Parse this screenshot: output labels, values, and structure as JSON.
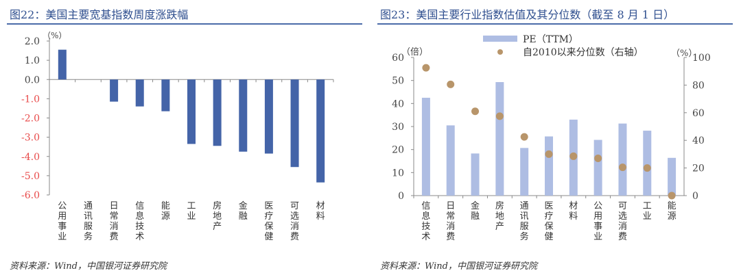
{
  "chart_data": [
    {
      "type": "bar",
      "title": "图22：美国主要宽基指数周度涨跌幅",
      "ylabel": "（%）",
      "ylim": [
        -6.0,
        2.0
      ],
      "yticks": [
        "2.0",
        "1.0",
        "0.0",
        "-1.0",
        "-2.0",
        "-3.0",
        "-4.0",
        "-5.0",
        "-6.0"
      ],
      "categories": [
        "公用事业",
        "通讯服务",
        "日常消费",
        "信息技术",
        "能源",
        "工业",
        "房地产",
        "金融",
        "医疗保健",
        "可选消费",
        "材料"
      ],
      "values": [
        1.55,
        0.0,
        -1.15,
        -1.4,
        -1.65,
        -3.35,
        -3.45,
        -3.75,
        -3.85,
        -4.55,
        -5.35
      ],
      "bar_color": "#4464a8",
      "negative_tick_color": "#e84a4a",
      "source": "资料来源：Wind，中国银河证券研究院"
    },
    {
      "type": "bar+scatter",
      "title": "图23：美国主要行业指数估值及其分位数（截至 8 月 1 日）",
      "ylabel": "（倍）",
      "y2label": "（%）",
      "ylim": [
        0,
        60
      ],
      "y2lim": [
        0,
        100
      ],
      "yticks": [
        "0",
        "10",
        "20",
        "30",
        "40",
        "50",
        "60"
      ],
      "y2ticks": [
        "0",
        "20",
        "40",
        "60",
        "80",
        "100"
      ],
      "categories": [
        "信息技术",
        "日常消费",
        "金融",
        "房地产",
        "通讯服务",
        "医疗保健",
        "材料",
        "公用事业",
        "可选消费",
        "工业",
        "能源"
      ],
      "series": [
        {
          "name": "PE（TTM）",
          "type": "bar",
          "color": "#aebde3",
          "values": [
            42.5,
            30.5,
            18.3,
            49.3,
            20.7,
            25.7,
            33.0,
            24.2,
            31.3,
            28.2,
            16.4
          ]
        },
        {
          "name": "自2010以来分位数（右轴）",
          "type": "scatter",
          "color": "#b8956a",
          "values": [
            92.5,
            80.5,
            61,
            57.5,
            42.5,
            30,
            28.5,
            27,
            20.5,
            20,
            0
          ]
        }
      ],
      "legend": "top",
      "source": "资料来源：Wind，中国银河证券研究院"
    }
  ]
}
